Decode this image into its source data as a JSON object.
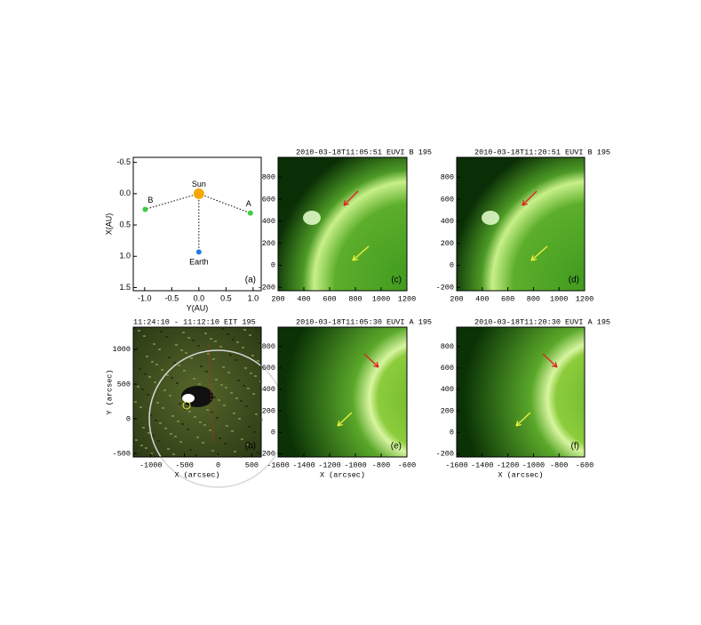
{
  "figure": {
    "panels": [
      {
        "id": "a",
        "label": "(a)",
        "xlabel": "Y(AU)",
        "ylabel": "X(AU)",
        "xlim": [
          -1.21,
          1.15
        ],
        "ylim": [
          -0.58,
          1.55
        ],
        "xticks": [
          {
            "value": -1,
            "label": "-1.0"
          },
          -0.5,
          {
            "value": 0,
            "label": "0.0"
          },
          0.5,
          {
            "value": 1,
            "label": "1.0"
          }
        ],
        "yticks": [
          -0.5,
          {
            "value": 0,
            "label": "0.0"
          },
          0.5,
          {
            "value": 1,
            "label": "1.0"
          },
          1.5
        ],
        "points": [
          {
            "name": "Sun",
            "x": 0,
            "y": 0,
            "color": "#f5a800"
          },
          {
            "name": "Earth",
            "x": 0,
            "y": 0.93,
            "color": "#1f7fe0"
          },
          {
            "name": "B",
            "x": -0.99,
            "y": 0.25,
            "color": "#3ecf3e"
          },
          {
            "name": "A",
            "x": 0.95,
            "y": 0.31,
            "color": "#3ecf3e"
          }
        ]
      },
      {
        "id": "c",
        "label": "(c)",
        "title": "2010-03-18T11:05:51 EUVI B  195",
        "xlim": [
          200,
          1200
        ],
        "ylim": [
          -230,
          980
        ],
        "xticks": [
          200,
          400,
          600,
          800,
          1000,
          1200
        ],
        "yticks": [
          -200,
          0,
          200,
          400,
          600,
          800
        ]
      },
      {
        "id": "d",
        "label": "(d)",
        "title": "2010-03-18T11:20:51 EUVI B  195",
        "xlim": [
          200,
          1200
        ],
        "ylim": [
          -230,
          980
        ],
        "xticks": [
          200,
          400,
          600,
          800,
          1000,
          1200
        ],
        "yticks": [
          -200,
          0,
          200,
          400,
          600,
          800
        ]
      },
      {
        "id": "b",
        "label": "(b)",
        "title": "11:24:10 - 11:12:10 EIT 195",
        "xlabel": "X (arcsec)",
        "ylabel": "Y (arcsec)",
        "xlim": [
          -1260,
          640
        ],
        "ylim": [
          -550,
          1320
        ],
        "xticks": [
          -1000,
          -500,
          0,
          500
        ],
        "yticks": [
          -500,
          0,
          500,
          1000
        ]
      },
      {
        "id": "e",
        "label": "(e)",
        "title": "2010-03-18T11:05:30 EUVI A  195",
        "xlabel": "X (arcsec)",
        "xlim": [
          -1600,
          -600
        ],
        "ylim": [
          -230,
          980
        ],
        "xticks": [
          -1600,
          -1400,
          -1200,
          -1000,
          -800,
          -600
        ],
        "yticks": [
          -200,
          0,
          200,
          400,
          600,
          800
        ]
      },
      {
        "id": "f",
        "label": "(f)",
        "title": "2010-03-18T11:20:30 EUVI A  195",
        "xlabel": "X (arcsec)",
        "xlim": [
          -1600,
          -600
        ],
        "ylim": [
          -230,
          980
        ],
        "xticks": [
          -1600,
          -1400,
          -1200,
          -1000,
          -800,
          -600
        ],
        "yticks": [
          -200,
          0,
          200,
          400,
          600,
          800
        ]
      }
    ]
  }
}
